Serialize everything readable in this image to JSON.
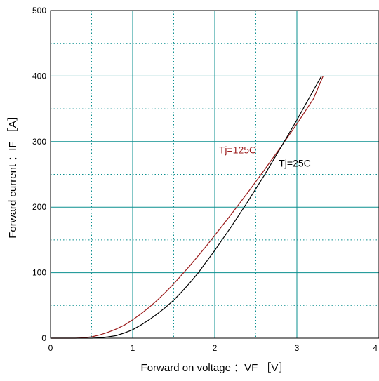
{
  "chart_data": {
    "type": "line",
    "title": "",
    "xlabel": "Forward on voltage ：VF ［V］",
    "ylabel": "Forward current ：IF ［A］",
    "xlim": [
      0,
      4
    ],
    "ylim": [
      0,
      500
    ],
    "x_ticks": [
      "0",
      "1",
      "2",
      "3",
      "4"
    ],
    "y_ticks": [
      "0",
      "100",
      "200",
      "300",
      "400",
      "500"
    ],
    "grid": true,
    "series": [
      {
        "name": "Tj=125C",
        "color": "#9b1b1b",
        "x": [
          0,
          0.3,
          0.4,
          0.5,
          0.6,
          0.7,
          0.8,
          0.9,
          1.0,
          1.1,
          1.2,
          1.3,
          1.4,
          1.5,
          1.6,
          1.7,
          1.8,
          1.9,
          2.0,
          2.2,
          2.4,
          2.6,
          2.8,
          3.0,
          3.2,
          3.32
        ],
        "y": [
          0,
          0,
          0.5,
          2,
          5,
          9,
          14,
          20,
          28,
          37,
          47,
          58,
          70,
          83,
          97,
          111,
          126,
          141,
          157,
          189,
          222,
          256,
          291,
          327,
          365,
          400
        ]
      },
      {
        "name": "Tj=25C",
        "color": "#000000",
        "x": [
          0,
          0.5,
          0.6,
          0.7,
          0.8,
          0.9,
          1.0,
          1.1,
          1.2,
          1.3,
          1.4,
          1.5,
          1.6,
          1.7,
          1.8,
          1.9,
          2.0,
          2.2,
          2.4,
          2.6,
          2.8,
          3.0,
          3.2,
          3.3
        ],
        "y": [
          0,
          0,
          0.5,
          2,
          4,
          8,
          13,
          20,
          28,
          37,
          47,
          58,
          71,
          85,
          100,
          117,
          134,
          170,
          208,
          248,
          290,
          333,
          378,
          400
        ]
      }
    ],
    "annotations": [
      {
        "text": "Tj=125C",
        "series": "Tj=125C",
        "x": 2.05,
        "y": 282
      },
      {
        "text": "Tj=25C",
        "series": "Tj=25C",
        "x": 2.78,
        "y": 262
      }
    ]
  }
}
